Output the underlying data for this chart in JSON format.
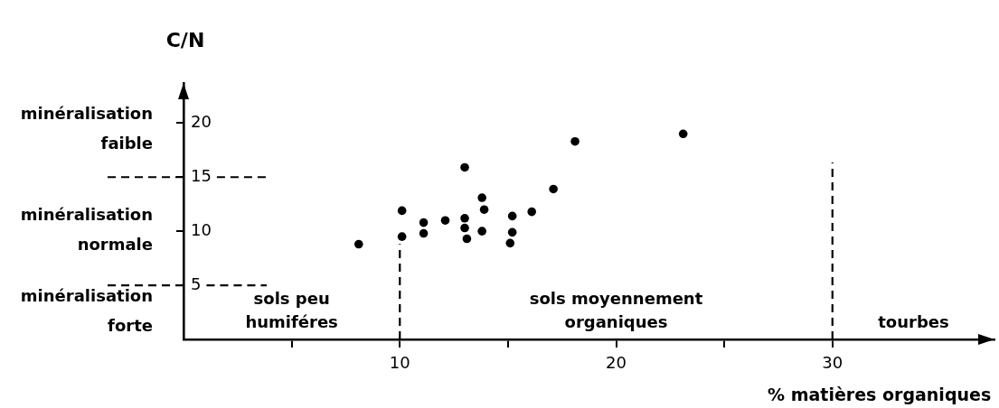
{
  "chart_data": {
    "type": "scatter",
    "xlabel": "% matières organiques",
    "ylabel": "C/N",
    "x": [
      8.1,
      10.1,
      10.1,
      11.1,
      11.1,
      12.1,
      13.0,
      13.0,
      13.0,
      13.1,
      13.8,
      13.9,
      13.8,
      15.2,
      15.2,
      15.1,
      16.1,
      17.1,
      18.1,
      23.1
    ],
    "values": [
      8.8,
      11.9,
      9.5,
      10.8,
      9.8,
      11.0,
      15.9,
      11.2,
      10.3,
      9.3,
      13.1,
      12.0,
      10.0,
      11.4,
      9.9,
      8.9,
      11.8,
      13.9,
      18.3,
      19.0
    ],
    "color": "#000000",
    "marker": "circle",
    "xlim": [
      0,
      37.5
    ],
    "ylim": [
      0,
      23.7
    ],
    "xticks": [
      {
        "value": 5,
        "label": null
      },
      10,
      {
        "value": 15,
        "label": null
      },
      20,
      {
        "value": 25,
        "label": null
      },
      30
    ],
    "yticks": [
      5,
      10,
      15,
      20
    ],
    "ref_lines": [
      {
        "axis": "y",
        "value": 15,
        "color": "#000000",
        "line_style": "dashed"
      },
      {
        "axis": "y",
        "value": 5,
        "color": "#000000",
        "line_style": "dashed"
      },
      {
        "axis": "x",
        "value": 10,
        "color": "#000000",
        "line_style": "dashed"
      },
      {
        "axis": "x",
        "value": 30,
        "color": "#000000",
        "line_style": "dashed"
      }
    ],
    "annotations": [
      "minéralisation faible",
      "minéralisation normale",
      "minéralisation forte",
      "sols peu humiféres",
      "sols moyennement organiques",
      "tourbes"
    ]
  }
}
